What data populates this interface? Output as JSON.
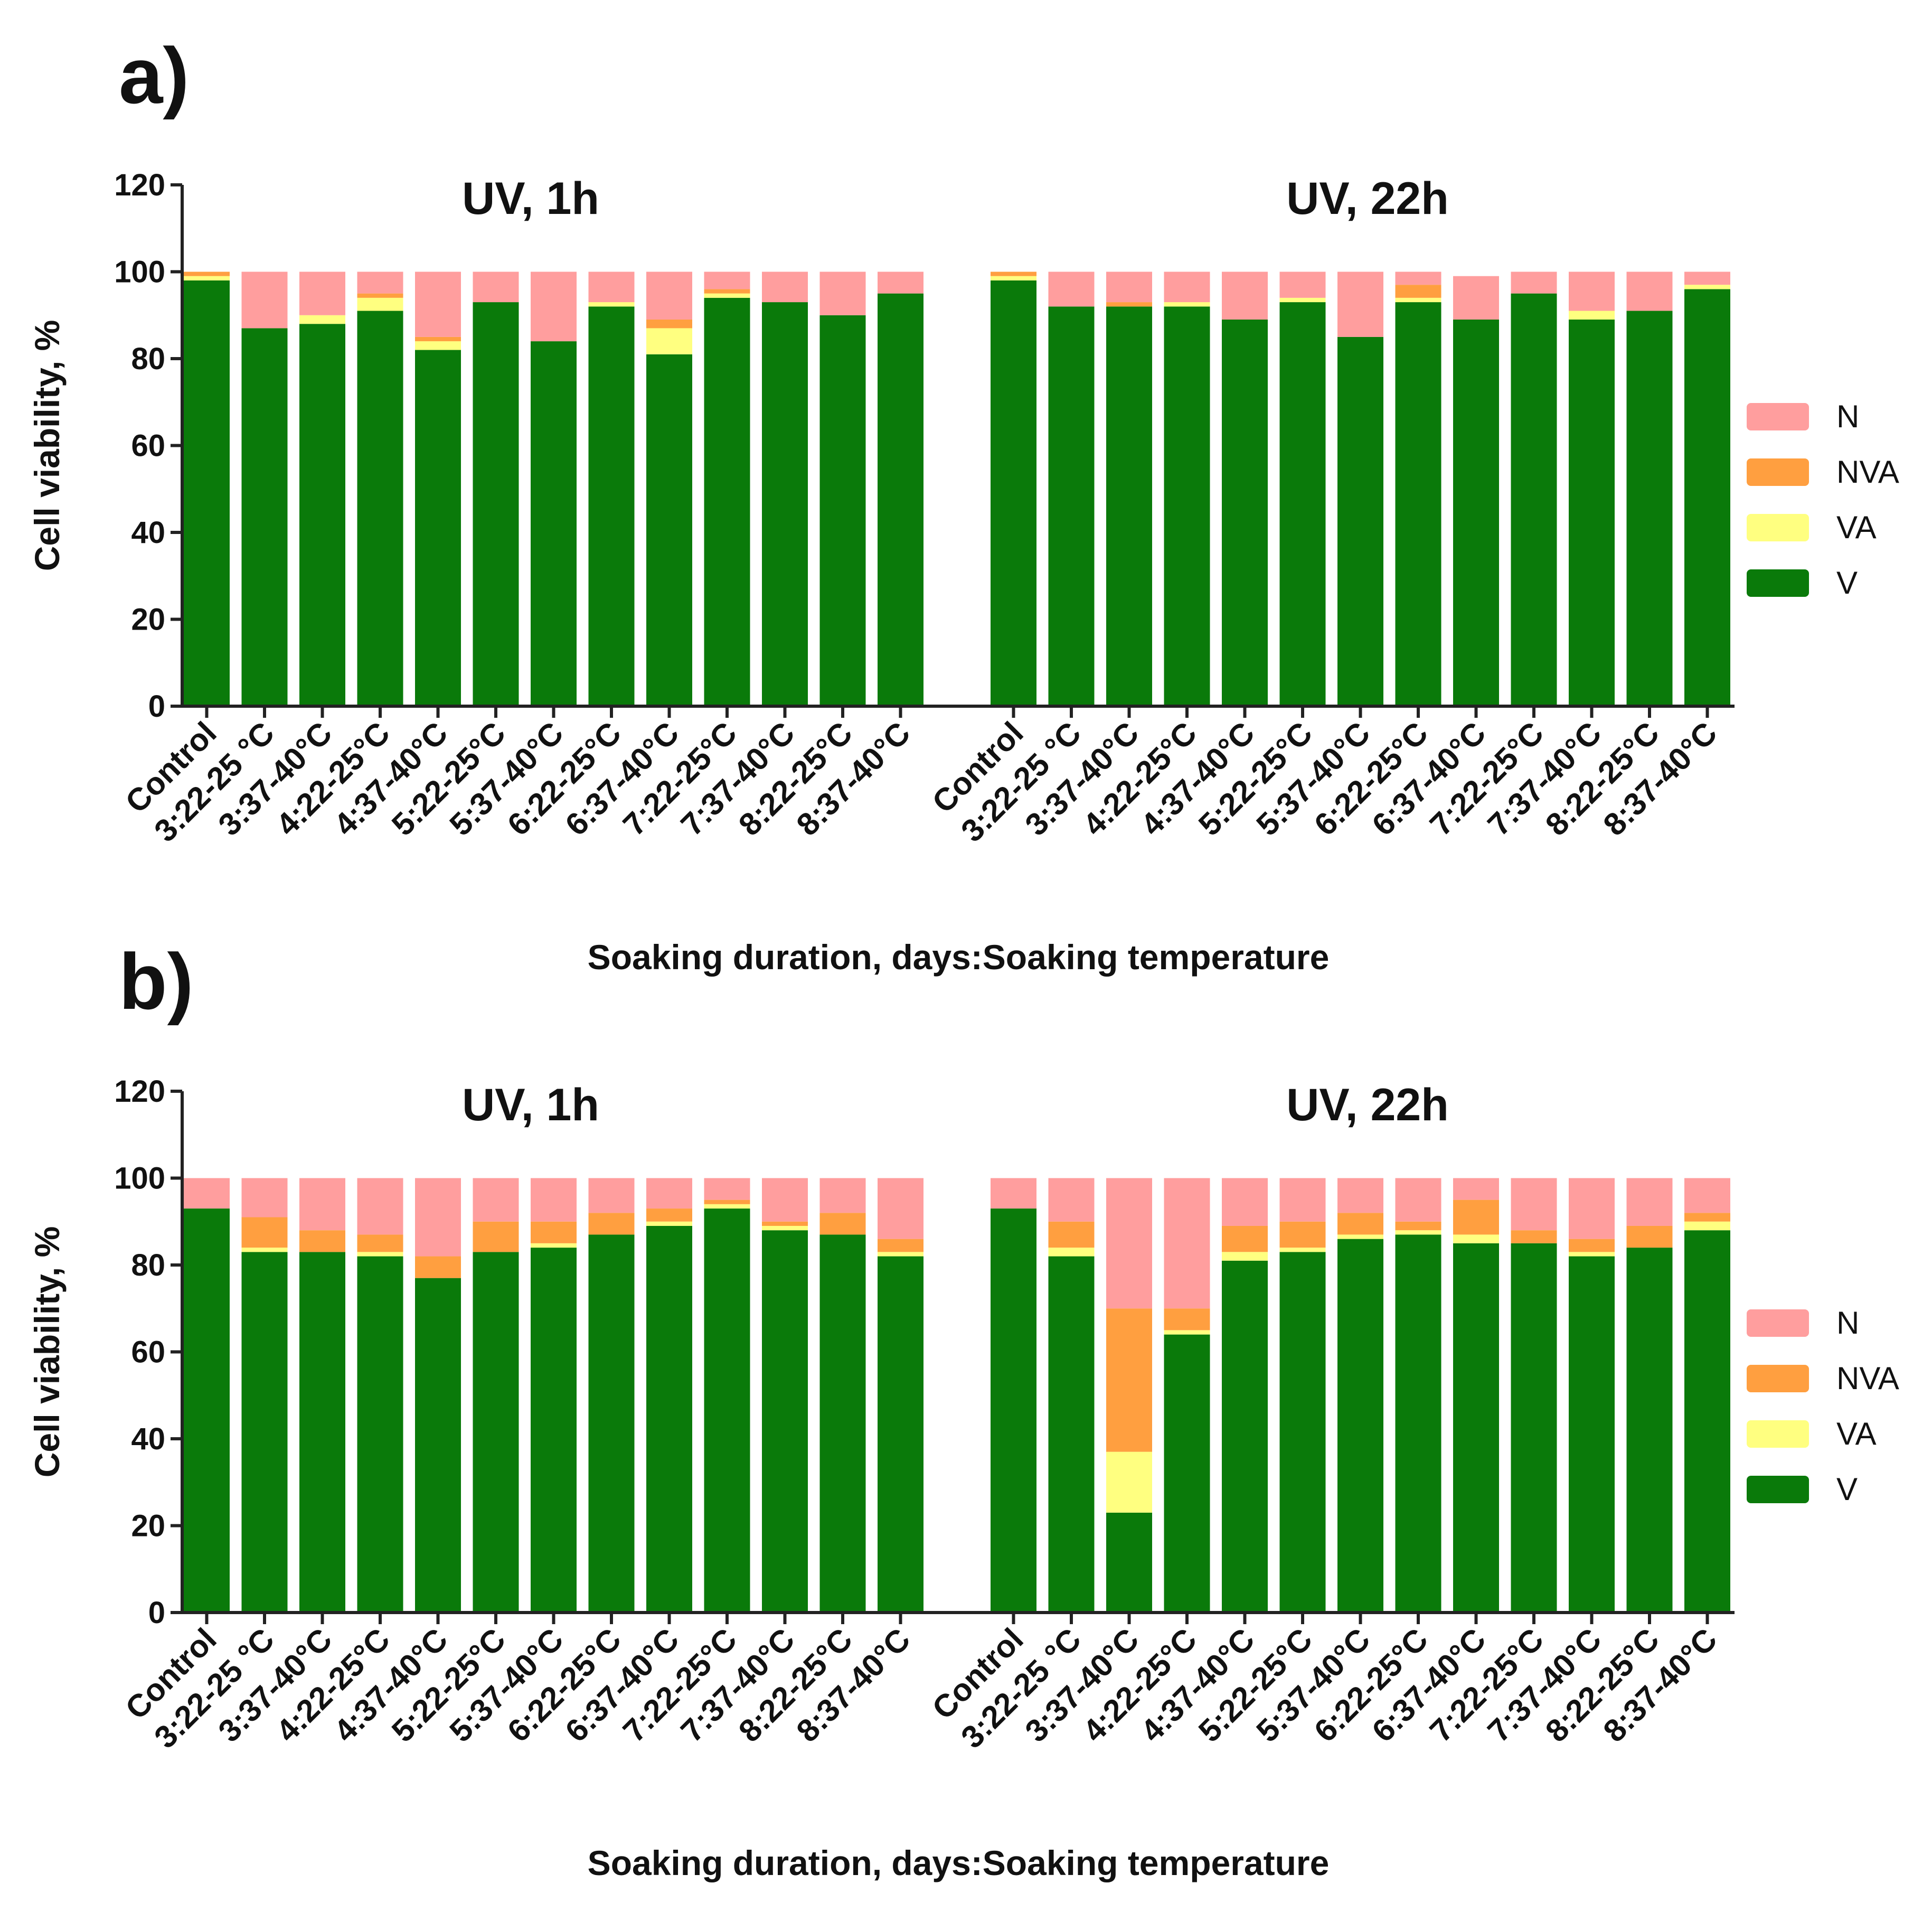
{
  "chart_data": [
    {
      "type": "stacked-bar",
      "panel_label": "a)",
      "group_titles": [
        "UV, 1h",
        "UV, 22h"
      ],
      "ylabel": "Cell viability, %",
      "xlabel": "Soaking duration, days:Soaking temperature",
      "ylim": [
        0,
        120
      ],
      "yticks": [
        "0",
        "20",
        "40",
        "60",
        "80",
        "100",
        "120"
      ],
      "categories": [
        "Control",
        "3:22-25 °C",
        "3:37-40°C",
        "4:22-25°C",
        "4:37-40°C",
        "5:22-25°C",
        "5:37-40°C",
        "6:22-25°C",
        "6:37-40°C",
        "7:22-25°C",
        "7:37-40°C",
        "8:22-25°C",
        "8:37-40°C"
      ],
      "legend": [
        "N",
        "NVA",
        "VA",
        "V"
      ],
      "colors": {
        "V": "#0a7a0a",
        "VA": "#ffff80",
        "NVA": "#ff9f40",
        "N": "#ff9e9e"
      },
      "groups": [
        {
          "name": "UV, 1h",
          "series": [
            {
              "name": "V",
              "values": [
                98,
                87,
                88,
                91,
                82,
                93,
                84,
                92,
                81,
                94,
                93,
                90,
                95
              ]
            },
            {
              "name": "VA",
              "values": [
                1,
                0,
                2,
                3,
                2,
                0,
                0,
                1,
                6,
                1,
                0,
                0,
                0
              ]
            },
            {
              "name": "NVA",
              "values": [
                1,
                0,
                0,
                1,
                1,
                0,
                0,
                0,
                2,
                1,
                0,
                0,
                0
              ]
            },
            {
              "name": "N",
              "values": [
                0,
                13,
                10,
                5,
                15,
                7,
                16,
                7,
                11,
                4,
                7,
                10,
                5
              ]
            }
          ]
        },
        {
          "name": "UV, 22h",
          "series": [
            {
              "name": "V",
              "values": [
                98,
                92,
                92,
                92,
                89,
                93,
                85,
                93,
                89,
                95,
                89,
                91,
                96
              ]
            },
            {
              "name": "VA",
              "values": [
                1,
                0,
                0,
                1,
                0,
                1,
                0,
                1,
                0,
                0,
                2,
                0,
                1
              ]
            },
            {
              "name": "NVA",
              "values": [
                1,
                0,
                1,
                0,
                0,
                0,
                0,
                3,
                0,
                0,
                0,
                0,
                0
              ]
            },
            {
              "name": "N",
              "values": [
                0,
                8,
                7,
                7,
                11,
                6,
                15,
                3,
                10,
                5,
                9,
                9,
                3
              ]
            }
          ]
        }
      ]
    },
    {
      "type": "stacked-bar",
      "panel_label": "b)",
      "group_titles": [
        "UV, 1h",
        "UV, 22h"
      ],
      "ylabel": "Cell viability, %",
      "xlabel": "Soaking duration, days:Soaking temperature",
      "ylim": [
        0,
        120
      ],
      "yticks": [
        "0",
        "20",
        "40",
        "60",
        "80",
        "100",
        "120"
      ],
      "categories": [
        "Control",
        "3:22-25 °C",
        "3:37-40°C",
        "4:22-25°C",
        "4:37-40°C",
        "5:22-25°C",
        "5:37-40°C",
        "6:22-25°C",
        "6:37-40°C",
        "7:22-25°C",
        "7:37-40°C",
        "8:22-25°C",
        "8:37-40°C"
      ],
      "legend": [
        "N",
        "NVA",
        "VA",
        "V"
      ],
      "colors": {
        "V": "#0a7a0a",
        "VA": "#ffff80",
        "NVA": "#ff9f40",
        "N": "#ff9e9e"
      },
      "groups": [
        {
          "name": "UV, 1h",
          "series": [
            {
              "name": "V",
              "values": [
                93,
                83,
                83,
                82,
                77,
                83,
                84,
                87,
                89,
                93,
                88,
                87,
                82
              ]
            },
            {
              "name": "VA",
              "values": [
                0,
                1,
                0,
                1,
                0,
                0,
                1,
                0,
                1,
                1,
                1,
                0,
                1
              ]
            },
            {
              "name": "NVA",
              "values": [
                0,
                7,
                5,
                4,
                5,
                7,
                5,
                5,
                3,
                1,
                1,
                5,
                3
              ]
            },
            {
              "name": "N",
              "values": [
                7,
                9,
                12,
                13,
                18,
                10,
                10,
                8,
                7,
                5,
                10,
                8,
                14
              ]
            }
          ]
        },
        {
          "name": "UV, 22h",
          "series": [
            {
              "name": "V",
              "values": [
                93,
                82,
                23,
                64,
                81,
                83,
                86,
                87,
                85,
                85,
                82,
                84,
                88
              ]
            },
            {
              "name": "VA",
              "values": [
                0,
                2,
                14,
                1,
                2,
                1,
                1,
                1,
                2,
                0,
                1,
                0,
                2
              ]
            },
            {
              "name": "NVA",
              "values": [
                0,
                6,
                33,
                5,
                6,
                6,
                5,
                2,
                8,
                3,
                3,
                5,
                2
              ]
            },
            {
              "name": "N",
              "values": [
                7,
                10,
                30,
                30,
                11,
                10,
                8,
                10,
                5,
                12,
                14,
                11,
                8
              ]
            }
          ]
        }
      ]
    }
  ]
}
